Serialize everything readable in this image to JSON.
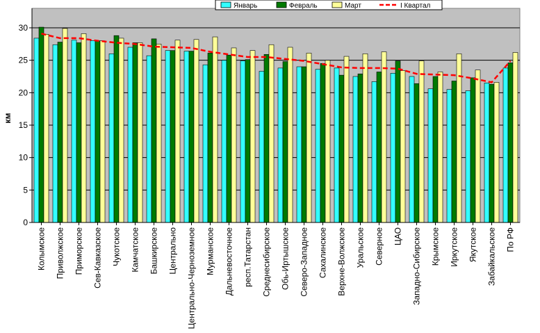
{
  "chart_data": {
    "type": "bar",
    "ylabel": "км",
    "ylim": [
      0,
      33
    ],
    "yticks": [
      0,
      5,
      10,
      15,
      20,
      25,
      30
    ],
    "grid": true,
    "legend_position": "top-center",
    "categories": [
      "Колымское",
      "Приволжское",
      "Приморское",
      "Сев-Кавказское",
      "Чукотское",
      "Камчатское",
      "Башкирское",
      "Центрально",
      "Центрально-Черноземное",
      "Мурманское",
      "Дальневосточное",
      "респ.Татарстан",
      "Среднесибирское",
      "Обь-Иртышское",
      "Северо-Западное",
      "Сахалинское",
      "Верхне-Волжское",
      "Уральское",
      "Северное",
      "ЦАО",
      "Западно-Сибирское",
      "Крымское",
      "Иркутское",
      "Якутское",
      "Забайкальское",
      "По РФ"
    ],
    "series": [
      {
        "name": "Январь",
        "color": "#33ffff",
        "kind": "bar",
        "values": [
          28.4,
          27.4,
          28.1,
          28.0,
          26.0,
          27.0,
          25.7,
          26.5,
          26.4,
          24.3,
          25.0,
          24.9,
          23.3,
          23.8,
          24.0,
          23.6,
          23.8,
          22.5,
          21.7,
          23.0,
          22.5,
          20.6,
          20.5,
          20.3,
          21.5,
          23.8
        ]
      },
      {
        "name": "Февраль",
        "color": "#007a00",
        "kind": "bar",
        "values": [
          30.1,
          27.8,
          27.7,
          28.0,
          28.8,
          27.7,
          28.3,
          26.5,
          26.4,
          26.1,
          25.8,
          25.1,
          25.9,
          24.8,
          24.0,
          24.5,
          22.7,
          22.9,
          23.2,
          24.9,
          21.4,
          22.5,
          21.8,
          22.3,
          21.3,
          24.6
        ]
      },
      {
        "name": "Март",
        "color": "#ffff99",
        "kind": "bar",
        "values": [
          29.0,
          29.9,
          29.1,
          28.0,
          28.4,
          27.7,
          27.5,
          28.1,
          28.2,
          28.6,
          26.9,
          26.5,
          27.4,
          27.0,
          26.1,
          25.0,
          25.6,
          26.0,
          26.3,
          23.4,
          24.9,
          23.2,
          26.0,
          23.5,
          21.6,
          26.2
        ]
      },
      {
        "name": "I Квартал",
        "color": "#ff0000",
        "kind": "line",
        "values": [
          29.1,
          28.4,
          28.4,
          28.0,
          27.7,
          27.5,
          27.1,
          27.0,
          26.9,
          26.3,
          25.9,
          25.5,
          25.5,
          25.2,
          24.9,
          24.4,
          23.9,
          23.8,
          23.8,
          23.7,
          22.9,
          22.8,
          22.7,
          22.2,
          21.6,
          24.9
        ]
      }
    ]
  }
}
